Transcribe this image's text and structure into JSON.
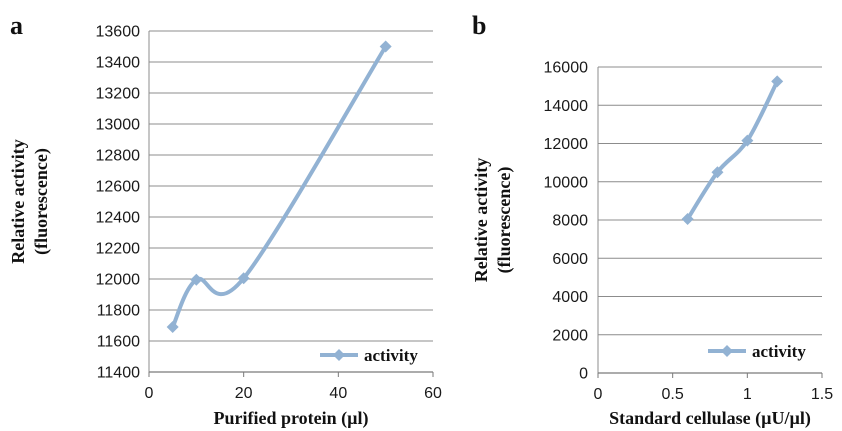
{
  "chart_data": [
    {
      "panel_label": "a",
      "type": "line",
      "x": [
        5,
        10,
        20,
        50
      ],
      "series": [
        {
          "name": "activity",
          "values": [
            11690,
            11995,
            12005,
            13500
          ]
        }
      ],
      "xlabel": "Purified protein (µl)",
      "ylabel": "Relative activity (fluorescence)",
      "ylabel_lines": [
        "Relative activity",
        "(fluorescence)"
      ],
      "xlim": [
        0,
        60
      ],
      "ylim": [
        11400,
        13600
      ],
      "xticks": [
        0,
        20,
        40,
        60
      ],
      "yticks": [
        11400,
        11600,
        11800,
        12000,
        12200,
        12400,
        12600,
        12800,
        13000,
        13200,
        13400,
        13600
      ],
      "grid": true,
      "legend": "bottom-right",
      "smooth": true,
      "line_color": "#92b2d3"
    },
    {
      "panel_label": "b",
      "type": "line",
      "x": [
        0.6,
        0.8,
        1.0,
        1.2
      ],
      "series": [
        {
          "name": "activity",
          "values": [
            8050,
            10500,
            12150,
            15250
          ]
        }
      ],
      "xlabel": "Standard cellulase (µU/µl)",
      "ylabel": "Relative activity (fluorescence)",
      "ylabel_lines": [
        "Relative activity",
        "(fluorescence)"
      ],
      "xlim": [
        0,
        1.5
      ],
      "ylim": [
        0,
        16000
      ],
      "xticks": [
        0,
        0.5,
        1,
        1.5
      ],
      "yticks": [
        0,
        2000,
        4000,
        6000,
        8000,
        10000,
        12000,
        14000,
        16000
      ],
      "grid": true,
      "legend": "bottom-right",
      "smooth": true,
      "line_color": "#92b2d3"
    }
  ]
}
